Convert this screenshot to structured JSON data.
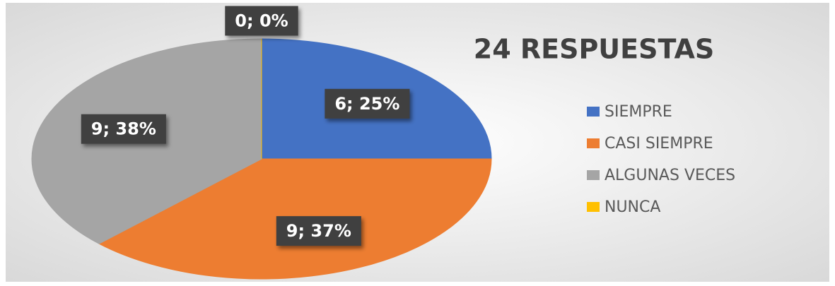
{
  "chart_data": {
    "type": "pie",
    "title": "24 RESPUESTAS",
    "categories": [
      "SIEMPRE",
      "CASI SIEMPRE",
      "ALGUNAS VECES",
      "NUNCA"
    ],
    "values": [
      6,
      9,
      9,
      0
    ],
    "value_labels": [
      "6; 25%",
      "9; 37%",
      "9; 38%",
      "0; 0%"
    ],
    "colors": [
      "#4472c4",
      "#ed7d31",
      "#a5a5a5",
      "#ffc000"
    ],
    "legend": "right"
  }
}
